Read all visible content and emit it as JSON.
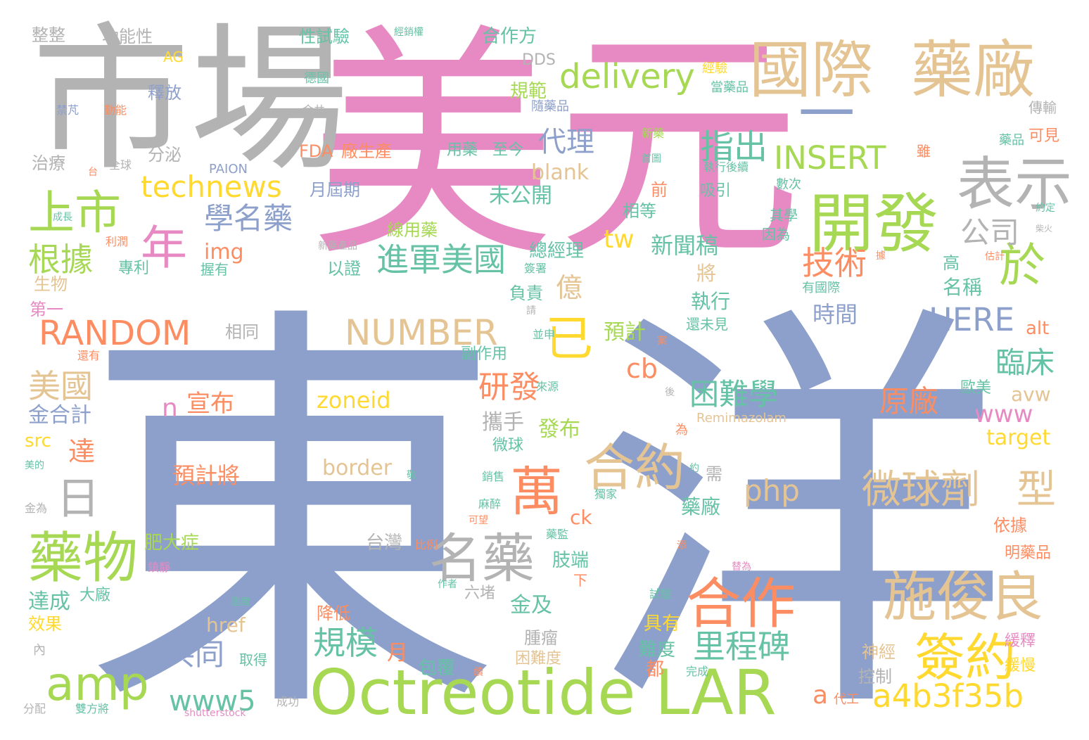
{
  "wordcloud": {
    "palette": {
      "blue": "#8da0cb",
      "pink": "#e78ac3",
      "green": "#a6d854",
      "gold": "#ffd92f",
      "tan": "#e5c494",
      "gray": "#b3b3b3",
      "orange": "#fc8d62",
      "teal": "#66c2a5"
    },
    "words": [
      {
        "text": "東",
        "color": "blue"
      },
      {
        "text": "洋",
        "color": "blue"
      },
      {
        "text": "美元",
        "color": "pink"
      },
      {
        "text": "市場",
        "color": "gray"
      },
      {
        "text": "一",
        "color": "blue"
      },
      {
        "text": "國際",
        "color": "tan"
      },
      {
        "text": "藥廠",
        "color": "tan"
      },
      {
        "text": "開發",
        "color": "green"
      },
      {
        "text": "表示",
        "color": "gray"
      },
      {
        "text": "Octreotide LAR",
        "color": "green"
      },
      {
        "text": "amp",
        "color": "green"
      },
      {
        "text": "藥物",
        "color": "green"
      },
      {
        "text": "名藥",
        "color": "gray"
      },
      {
        "text": "合作",
        "color": "orange"
      },
      {
        "text": "施俊良",
        "color": "tan"
      },
      {
        "text": "簽約",
        "color": "gold"
      },
      {
        "text": "合約",
        "color": "tan"
      },
      {
        "text": "萬",
        "color": "orange"
      },
      {
        "text": "已",
        "color": "gold"
      },
      {
        "text": "於",
        "color": "green"
      },
      {
        "text": "上市",
        "color": "green"
      },
      {
        "text": "年",
        "color": "pink"
      },
      {
        "text": "technews",
        "color": "gold"
      },
      {
        "text": "delivery",
        "color": "green"
      },
      {
        "text": "INSERT",
        "color": "green"
      },
      {
        "text": "RANDOM",
        "color": "orange"
      },
      {
        "text": "NUMBER",
        "color": "tan"
      },
      {
        "text": "HERE",
        "color": "blue"
      },
      {
        "text": "微球劑",
        "color": "tan"
      },
      {
        "text": "型",
        "color": "tan"
      },
      {
        "text": "a4b3f35b",
        "color": "gold"
      },
      {
        "text": "進軍美國",
        "color": "teal"
      },
      {
        "text": "里程碑",
        "color": "teal"
      },
      {
        "text": "根據",
        "color": "green"
      },
      {
        "text": "學名藥",
        "color": "blue"
      },
      {
        "text": "技術",
        "color": "orange"
      },
      {
        "text": "指出",
        "color": "teal"
      },
      {
        "text": "代理",
        "color": "blue"
      },
      {
        "text": "公司",
        "color": "gray"
      },
      {
        "text": "日",
        "color": "gray"
      },
      {
        "text": "美國",
        "color": "tan"
      },
      {
        "text": "www5",
        "color": "teal"
      },
      {
        "text": "規模",
        "color": "teal"
      },
      {
        "text": "研發",
        "color": "orange"
      },
      {
        "text": "困難學",
        "color": "teal"
      },
      {
        "text": "原廠",
        "color": "orange"
      },
      {
        "text": "www",
        "color": "pink"
      },
      {
        "text": "php",
        "color": "tan"
      },
      {
        "text": "共同",
        "color": "blue"
      },
      {
        "text": "臨床",
        "color": "teal"
      },
      {
        "text": "zoneid",
        "color": "gold"
      },
      {
        "text": "宣布",
        "color": "orange"
      },
      {
        "text": "n",
        "color": "pink"
      },
      {
        "text": "預計將",
        "color": "orange"
      },
      {
        "text": "border",
        "color": "tan"
      },
      {
        "text": "cb",
        "color": "orange"
      },
      {
        "text": "tw",
        "color": "gold"
      },
      {
        "text": "億",
        "color": "tan"
      },
      {
        "text": "新聞稿",
        "color": "teal"
      },
      {
        "text": "img",
        "color": "orange"
      },
      {
        "text": "blank",
        "color": "tan"
      },
      {
        "text": "未公開",
        "color": "teal"
      },
      {
        "text": "月屆期",
        "color": "blue"
      },
      {
        "text": "FDA",
        "color": "orange"
      },
      {
        "text": "廠生產",
        "color": "orange"
      },
      {
        "text": "分泌",
        "color": "gray"
      },
      {
        "text": "治療",
        "color": "gray"
      },
      {
        "text": "功能性",
        "color": "gray"
      },
      {
        "text": "整整",
        "color": "gray"
      },
      {
        "text": "性試驗",
        "color": "teal"
      },
      {
        "text": "合作方",
        "color": "teal"
      },
      {
        "text": "規範",
        "color": "green"
      },
      {
        "text": "DDS",
        "color": "gray"
      },
      {
        "text": "AG",
        "color": "gold"
      },
      {
        "text": "釋放",
        "color": "blue"
      },
      {
        "text": "用藥",
        "color": "teal"
      },
      {
        "text": "至今",
        "color": "teal"
      },
      {
        "text": "吸引",
        "color": "teal"
      },
      {
        "text": "前",
        "color": "orange"
      },
      {
        "text": "相等",
        "color": "teal"
      },
      {
        "text": "時間",
        "color": "blue"
      },
      {
        "text": "名稱",
        "color": "teal"
      },
      {
        "text": "執行",
        "color": "teal"
      },
      {
        "text": "預計",
        "color": "green"
      },
      {
        "text": "將",
        "color": "tan"
      },
      {
        "text": "總經理",
        "color": "teal"
      },
      {
        "text": "以證",
        "color": "teal"
      },
      {
        "text": "線用藥",
        "color": "green"
      },
      {
        "text": "負責",
        "color": "teal"
      },
      {
        "text": "相同",
        "color": "gray"
      },
      {
        "text": "副作用",
        "color": "teal"
      },
      {
        "text": "攜手",
        "color": "gray"
      },
      {
        "text": "發布",
        "color": "green"
      },
      {
        "text": "微球",
        "color": "teal"
      },
      {
        "text": "ck",
        "color": "orange"
      },
      {
        "text": "肢端",
        "color": "teal"
      },
      {
        "text": "台灣",
        "color": "gray"
      },
      {
        "text": "肥大症",
        "color": "green"
      },
      {
        "text": "金及",
        "color": "teal"
      },
      {
        "text": "達成",
        "color": "teal"
      },
      {
        "text": "大廠",
        "color": "teal"
      },
      {
        "text": "效果",
        "color": "gold"
      },
      {
        "text": "降低",
        "color": "orange"
      },
      {
        "text": "href",
        "color": "tan"
      },
      {
        "text": "月",
        "color": "orange"
      },
      {
        "text": "包覆",
        "color": "teal"
      },
      {
        "text": "腫瘤",
        "color": "gray"
      },
      {
        "text": "困難度",
        "color": "tan"
      },
      {
        "text": "具有",
        "color": "gold"
      },
      {
        "text": "難度",
        "color": "teal"
      },
      {
        "text": "都",
        "color": "orange"
      },
      {
        "text": "神經",
        "color": "tan"
      },
      {
        "text": "控制",
        "color": "gray"
      },
      {
        "text": "緩釋",
        "color": "pink"
      },
      {
        "text": "緩慢",
        "color": "gold"
      },
      {
        "text": "依據",
        "color": "orange"
      },
      {
        "text": "明藥品",
        "color": "orange"
      },
      {
        "text": "target",
        "color": "gold"
      },
      {
        "text": "avw",
        "color": "tan"
      },
      {
        "text": "歐美",
        "color": "teal"
      },
      {
        "text": "alt",
        "color": "orange"
      },
      {
        "text": "Remimazolam",
        "color": "tan"
      },
      {
        "text": "藥廠",
        "color": "teal"
      },
      {
        "text": "需",
        "color": "gray"
      },
      {
        "text": "金合計",
        "color": "blue"
      },
      {
        "text": "src",
        "color": "gold"
      },
      {
        "text": "達",
        "color": "orange"
      },
      {
        "text": "第一",
        "color": "pink"
      },
      {
        "text": "生物",
        "color": "tan"
      },
      {
        "text": "專利",
        "color": "teal"
      },
      {
        "text": "握有",
        "color": "teal"
      },
      {
        "text": "高",
        "color": "teal"
      },
      {
        "text": "其學",
        "color": "teal"
      },
      {
        "text": "因為",
        "color": "teal"
      },
      {
        "text": "數次",
        "color": "teal"
      },
      {
        "text": "有國際",
        "color": "teal"
      },
      {
        "text": "還未見",
        "color": "teal"
      },
      {
        "text": "可見",
        "color": "orange"
      },
      {
        "text": "藥品",
        "color": "teal"
      },
      {
        "text": "傳輸",
        "color": "gray"
      },
      {
        "text": "雖",
        "color": "orange"
      },
      {
        "text": "經驗",
        "color": "gold"
      },
      {
        "text": "當藥品",
        "color": "teal"
      },
      {
        "text": "德國",
        "color": "teal"
      },
      {
        "text": "隨藥品",
        "color": "blue"
      },
      {
        "text": "新藥",
        "color": "green"
      },
      {
        "text": "首圖",
        "color": "teal"
      },
      {
        "text": "執行後續",
        "color": "teal"
      },
      {
        "text": "經銷權",
        "color": "teal"
      },
      {
        "text": "金共",
        "color": "gray"
      },
      {
        "text": "禁芃",
        "color": "blue"
      },
      {
        "text": "動能",
        "color": "orange"
      },
      {
        "text": "全球",
        "color": "gray"
      },
      {
        "text": "台",
        "color": "orange"
      },
      {
        "text": "PAION",
        "color": "blue"
      },
      {
        "text": "成長",
        "color": "teal"
      },
      {
        "text": "利潤",
        "color": "orange"
      },
      {
        "text": "新藥產品",
        "color": "gray"
      },
      {
        "text": "簽署",
        "color": "teal"
      },
      {
        "text": "請",
        "color": "gray"
      },
      {
        "text": "並申",
        "color": "teal"
      },
      {
        "text": "案",
        "color": "orange"
      },
      {
        "text": "後",
        "color": "gray"
      },
      {
        "text": "還有",
        "color": "orange"
      },
      {
        "text": "來源",
        "color": "teal"
      },
      {
        "text": "為",
        "color": "orange"
      },
      {
        "text": "約",
        "color": "teal"
      },
      {
        "text": "敬",
        "color": "teal"
      },
      {
        "text": "美的",
        "color": "teal"
      },
      {
        "text": "金為",
        "color": "gray"
      },
      {
        "text": "銷售",
        "color": "teal"
      },
      {
        "text": "獨家",
        "color": "teal"
      },
      {
        "text": "麻醉",
        "color": "teal"
      },
      {
        "text": "可望",
        "color": "orange"
      },
      {
        "text": "藥監",
        "color": "teal"
      },
      {
        "text": "下",
        "color": "orange"
      },
      {
        "text": "比例",
        "color": "orange"
      },
      {
        "text": "鎮靜",
        "color": "pink"
      },
      {
        "text": "作者",
        "color": "teal"
      },
      {
        "text": "六堵",
        "color": "gray"
      },
      {
        "text": "添",
        "color": "orange"
      },
      {
        "text": "替為",
        "color": "pink"
      },
      {
        "text": "試驗",
        "color": "teal"
      },
      {
        "text": "進度",
        "color": "teal"
      },
      {
        "text": "續",
        "color": "orange"
      },
      {
        "text": "完成",
        "color": "teal"
      },
      {
        "text": "內",
        "color": "gray"
      },
      {
        "text": "取得",
        "color": "teal"
      },
      {
        "text": "分配",
        "color": "gray"
      },
      {
        "text": "雙方將",
        "color": "teal"
      },
      {
        "text": "shutterstock",
        "color": "pink"
      },
      {
        "text": "成功",
        "color": "gray"
      },
      {
        "text": "代工",
        "color": "orange"
      },
      {
        "text": "a",
        "color": "orange"
      },
      {
        "text": "估計",
        "color": "orange"
      },
      {
        "text": "據",
        "color": "orange"
      },
      {
        "text": "約定",
        "color": "teal"
      },
      {
        "text": "柴火",
        "color": "gray"
      }
    ]
  }
}
